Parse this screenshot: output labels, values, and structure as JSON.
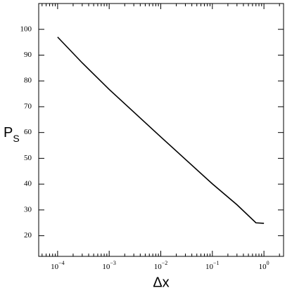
{
  "chart_data": {
    "type": "line",
    "xlabel": "Δx",
    "ylabel": "P",
    "ylabel_sub": "S",
    "xscale": "log",
    "xlim": [
      4.3e-05,
      2.4
    ],
    "ylim": [
      12,
      110
    ],
    "xticks": [
      {
        "value": 0.0001,
        "label": "10",
        "exp": "−4"
      },
      {
        "value": 0.001,
        "label": "10",
        "exp": "−3"
      },
      {
        "value": 0.01,
        "label": "10",
        "exp": "−2"
      },
      {
        "value": 0.1,
        "label": "10",
        "exp": "−1"
      },
      {
        "value": 1,
        "label": "10",
        "exp": "0"
      }
    ],
    "xminorticks": [
      5e-05,
      6e-05,
      7e-05,
      8e-05,
      9e-05,
      0.0002,
      0.0003,
      0.0004,
      0.0005,
      0.0006,
      0.0007,
      0.0008,
      0.0009,
      0.002,
      0.003,
      0.004,
      0.005,
      0.006,
      0.007,
      0.008,
      0.009,
      0.02,
      0.03,
      0.04,
      0.05,
      0.06,
      0.07,
      0.08,
      0.09,
      0.2,
      0.3,
      0.4,
      0.5,
      0.6,
      0.7,
      0.8,
      0.9,
      2
    ],
    "yticks": [
      20,
      30,
      40,
      50,
      60,
      70,
      80,
      90,
      100
    ],
    "x": [
      0.0001,
      0.0003,
      0.001,
      0.01,
      0.1,
      0.3,
      0.7,
      1
    ],
    "series": [
      {
        "color": "#000000",
        "values": [
          97,
          87,
          76.7,
          58.3,
          40.1,
          32,
          25,
          24.8
        ]
      }
    ]
  }
}
